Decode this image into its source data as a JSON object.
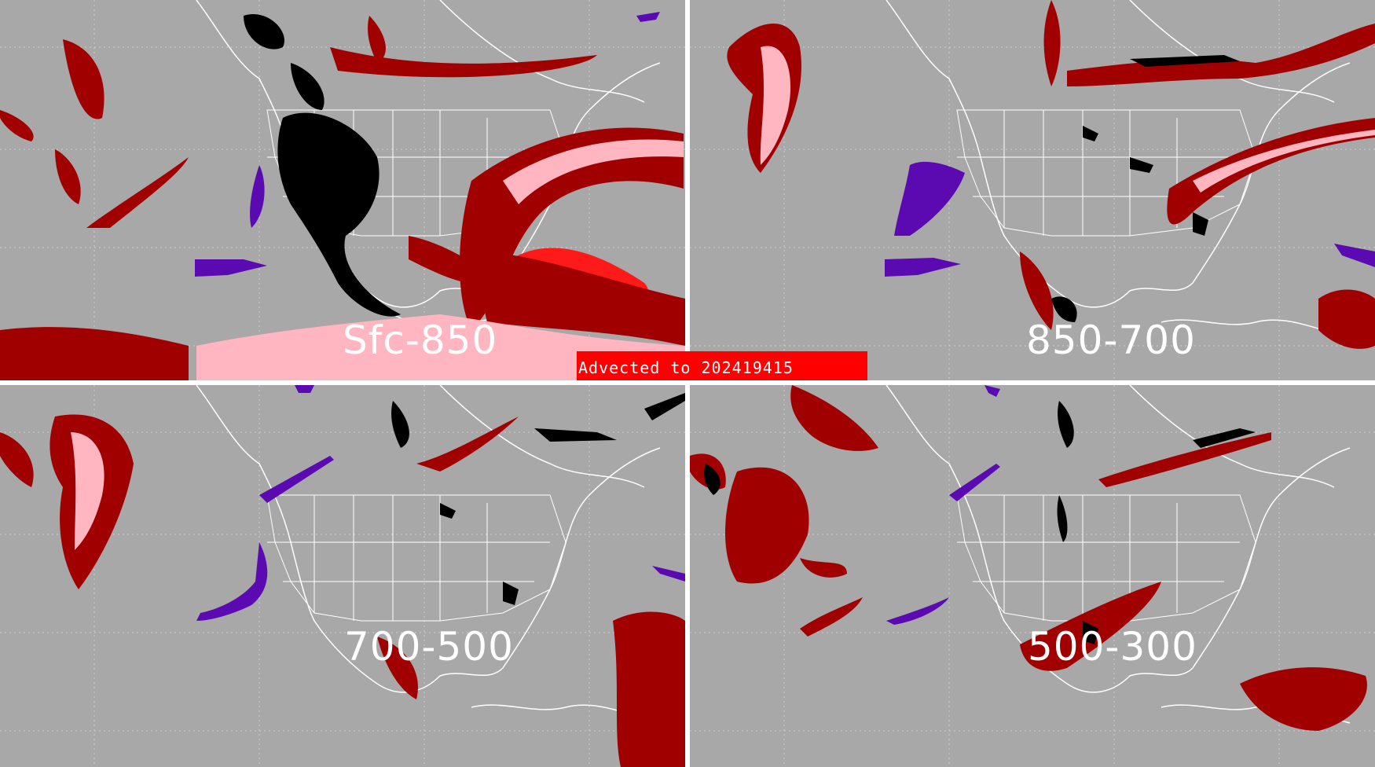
{
  "banner": {
    "prefix": "Advected to",
    "value": "202419415",
    "color": "#ff0000"
  },
  "panels": [
    {
      "id": "tl",
      "label": "Sfc-850"
    },
    {
      "id": "tr",
      "label": "850-700"
    },
    {
      "id": "bl",
      "label": "700-500"
    },
    {
      "id": "br",
      "label": "500-300"
    }
  ],
  "colors": {
    "background": "#a8a8a8",
    "border": "#ffffff",
    "map_lines": "#ffffff",
    "dark_red": "#a00000",
    "pink": "#ffb6c1",
    "bright_red": "#ff1a1a",
    "black": "#000000",
    "purple": "#5a0ab0"
  }
}
